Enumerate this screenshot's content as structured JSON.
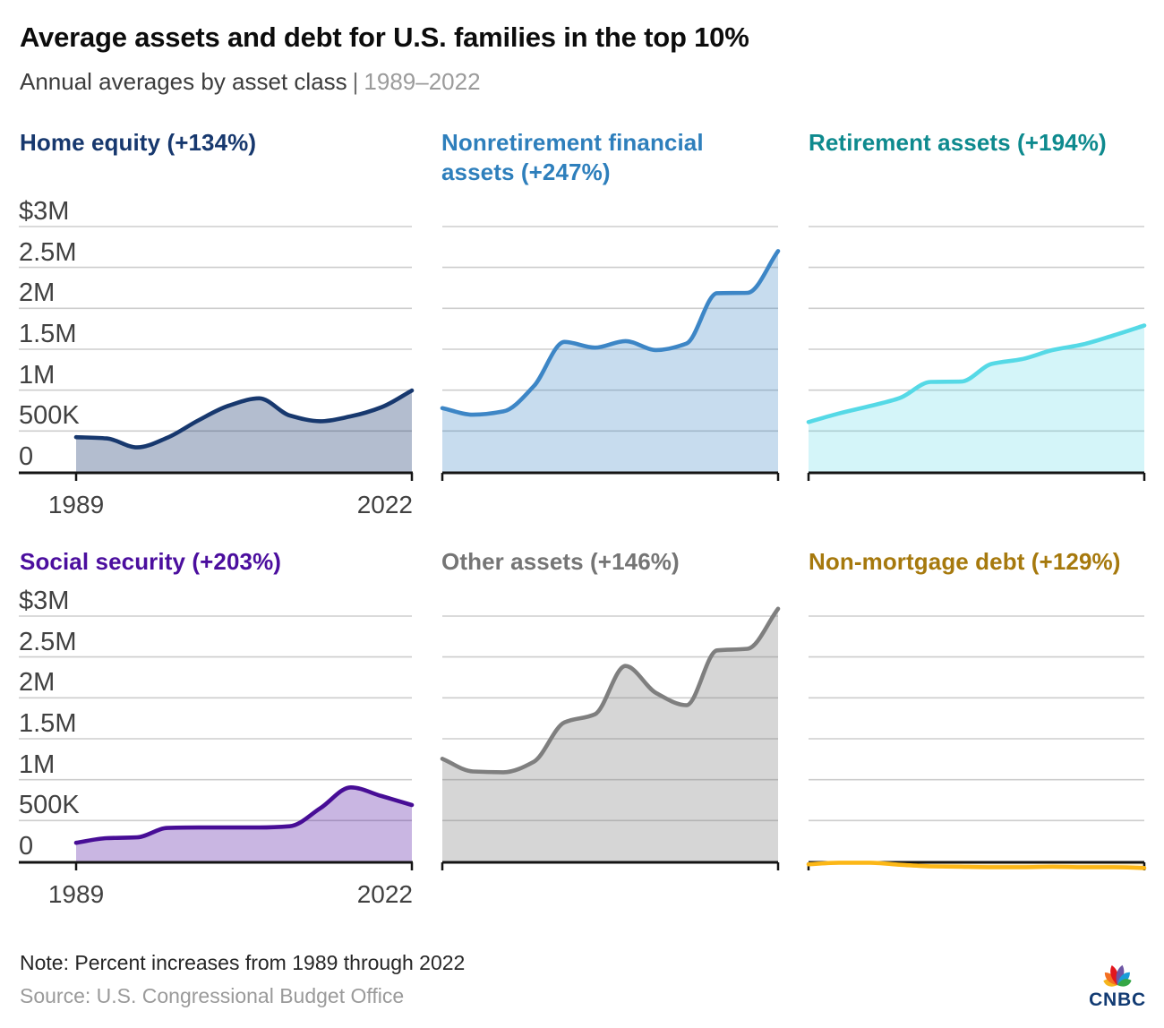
{
  "header": {
    "title": "Average assets and debt for U.S. families in the top 10%",
    "subtitle_main": "Annual averages by asset class",
    "subtitle_divider": "|",
    "subtitle_range": "1989–2022"
  },
  "footer": {
    "note": "Note: Percent increases from 1989 through 2022",
    "source": "Source: U.S. Congressional Budget Office",
    "logo_text": "CNBC"
  },
  "axes": {
    "y_ticks": [
      {
        "label": "$3M",
        "value_thousands": 3000
      },
      {
        "label": "2.5M",
        "value_thousands": 2500
      },
      {
        "label": "2M",
        "value_thousands": 2000
      },
      {
        "label": "1.5M",
        "value_thousands": 1500
      },
      {
        "label": "1M",
        "value_thousands": 1000
      },
      {
        "label": "500K",
        "value_thousands": 500
      },
      {
        "label": "0",
        "value_thousands": 0
      }
    ],
    "x_ticks": [
      {
        "label": "1989",
        "year": 1989
      },
      {
        "label": "2022",
        "year": 2022
      }
    ]
  },
  "chart_data": [
    {
      "type": "area",
      "title": "Home equity (+134%)",
      "percent_change": "+134%",
      "title_color": "#17386e",
      "line_color": "#17386e",
      "fill_color": "rgba(23,56,110,0.33)",
      "x": [
        1989,
        1992,
        1995,
        1998,
        2001,
        2004,
        2007,
        2010,
        2013,
        2016,
        2019,
        2022
      ],
      "values_thousands": [
        425,
        410,
        300,
        420,
        630,
        810,
        900,
        690,
        620,
        680,
        790,
        995
      ],
      "ylim_thousands": [
        0,
        3000
      ],
      "grid": true,
      "show_y_labels": true,
      "show_x_labels": true
    },
    {
      "type": "area",
      "title": "Nonretirement financial assets (+247%)",
      "percent_change": "+247%",
      "title_color": "#2e7fbc",
      "line_color": "#3d86c6",
      "fill_color": "rgba(61,134,198,0.29)",
      "x": [
        1989,
        1992,
        1995,
        1998,
        2001,
        2004,
        2007,
        2010,
        2013,
        2016,
        2019,
        2022
      ],
      "values_thousands": [
        780,
        700,
        740,
        1050,
        1590,
        1520,
        1600,
        1490,
        1570,
        2185,
        2190,
        2700
      ],
      "ylim_thousands": [
        0,
        3000
      ],
      "grid": true,
      "show_y_labels": false,
      "show_x_labels": false
    },
    {
      "type": "area",
      "title": "Retirement assets (+194%)",
      "percent_change": "+194%",
      "title_color": "#0e8a8e",
      "line_color": "#55d9e6",
      "fill_color": "rgba(85,217,230,0.25)",
      "x": [
        1989,
        1992,
        1995,
        1998,
        2001,
        2004,
        2007,
        2010,
        2013,
        2016,
        2019,
        2022
      ],
      "values_thousands": [
        610,
        715,
        805,
        905,
        1100,
        1105,
        1320,
        1380,
        1490,
        1560,
        1670,
        1790
      ],
      "ylim_thousands": [
        0,
        3000
      ],
      "grid": true,
      "show_y_labels": false,
      "show_x_labels": false
    },
    {
      "type": "area",
      "title": "Social security (+203%)",
      "percent_change": "+203%",
      "title_color": "#4b0e9e",
      "line_color": "#470d96",
      "fill_color": "rgba(75,14,158,0.3)",
      "x": [
        1989,
        1992,
        1995,
        1998,
        2001,
        2004,
        2007,
        2010,
        2013,
        2016,
        2019,
        2022
      ],
      "values_thousands": [
        228,
        285,
        295,
        410,
        415,
        415,
        415,
        430,
        650,
        905,
        800,
        690
      ],
      "ylim_thousands": [
        0,
        3000
      ],
      "grid": true,
      "show_y_labels": true,
      "show_x_labels": true
    },
    {
      "type": "area",
      "title": "Other assets (+146%)",
      "percent_change": "+146%",
      "title_color": "#757575",
      "line_color": "#7f7f7f",
      "fill_color": "rgba(127,127,127,0.32)",
      "x": [
        1989,
        1992,
        1995,
        1998,
        2001,
        2004,
        2007,
        2010,
        2013,
        2016,
        2019,
        2022
      ],
      "values_thousands": [
        1255,
        1100,
        1090,
        1220,
        1700,
        1800,
        2390,
        2060,
        1910,
        2580,
        2600,
        3090
      ],
      "ylim_thousands": [
        0,
        3000
      ],
      "grid": true,
      "show_y_labels": false,
      "show_x_labels": false
    },
    {
      "type": "area",
      "title": "Non-mortgage debt (+129%)",
      "percent_change": "+129%",
      "title_color": "#a6790d",
      "line_color": "#fcb717",
      "fill_color": "rgba(252,183,23,0.22)",
      "x": [
        1989,
        1992,
        1995,
        1998,
        2001,
        2004,
        2007,
        2010,
        2013,
        2016,
        2019,
        2022
      ],
      "values_thousands": [
        -35,
        -15,
        -15,
        -40,
        -60,
        -65,
        -70,
        -70,
        -65,
        -70,
        -70,
        -80
      ],
      "ylim_thousands": [
        0,
        3000
      ],
      "grid": true,
      "show_y_labels": false,
      "show_x_labels": false
    }
  ]
}
